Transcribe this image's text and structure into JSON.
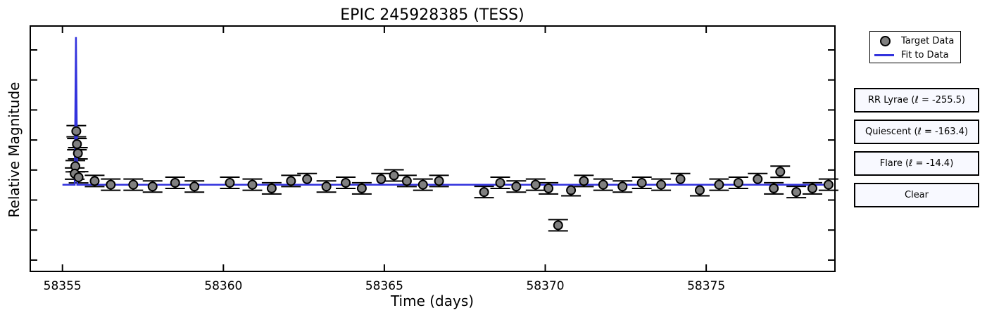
{
  "chart_data": {
    "type": "scatter",
    "title": "EPIC 245928385 (TESS)",
    "xlabel": "Time (days)",
    "ylabel": "Relative Magnitude",
    "xlim": [
      58354,
      58379
    ],
    "ylim": [
      -0.33,
      1.0
    ],
    "xticks": [
      58355,
      58360,
      58365,
      58370,
      58375
    ],
    "xtick_labels": [
      "58355",
      "58360",
      "58365",
      "58370",
      "58375"
    ],
    "grid": false,
    "legend_position": "top-right outside",
    "series": [
      {
        "name": "Target Data",
        "marker": "circle",
        "color": "#808080",
        "error_bars": true,
        "points": [
          [
            58355.43,
            0.43
          ],
          [
            58355.45,
            0.36
          ],
          [
            58355.48,
            0.31
          ],
          [
            58355.4,
            0.24
          ],
          [
            58355.38,
            0.2
          ],
          [
            58355.5,
            0.18
          ],
          [
            58356.0,
            0.16
          ],
          [
            58356.5,
            0.14
          ],
          [
            58357.2,
            0.14
          ],
          [
            58357.8,
            0.13
          ],
          [
            58358.5,
            0.15
          ],
          [
            58359.1,
            0.13
          ],
          [
            58360.2,
            0.15
          ],
          [
            58360.9,
            0.14
          ],
          [
            58361.5,
            0.12
          ],
          [
            58362.1,
            0.16
          ],
          [
            58362.6,
            0.17
          ],
          [
            58363.2,
            0.13
          ],
          [
            58363.8,
            0.15
          ],
          [
            58364.3,
            0.12
          ],
          [
            58364.9,
            0.17
          ],
          [
            58365.3,
            0.19
          ],
          [
            58365.7,
            0.16
          ],
          [
            58366.2,
            0.14
          ],
          [
            58366.7,
            0.16
          ],
          [
            58368.1,
            0.1
          ],
          [
            58368.6,
            0.15
          ],
          [
            58369.1,
            0.13
          ],
          [
            58369.7,
            0.14
          ],
          [
            58370.1,
            0.12
          ],
          [
            58370.4,
            -0.08
          ],
          [
            58370.8,
            0.11
          ],
          [
            58371.2,
            0.16
          ],
          [
            58371.8,
            0.14
          ],
          [
            58372.4,
            0.13
          ],
          [
            58373.0,
            0.15
          ],
          [
            58373.6,
            0.14
          ],
          [
            58374.2,
            0.17
          ],
          [
            58374.8,
            0.11
          ],
          [
            58375.4,
            0.14
          ],
          [
            58376.0,
            0.15
          ],
          [
            58376.6,
            0.17
          ],
          [
            58377.1,
            0.12
          ],
          [
            58377.3,
            0.21
          ],
          [
            58377.8,
            0.1
          ],
          [
            58378.3,
            0.12
          ],
          [
            58378.8,
            0.14
          ]
        ]
      },
      {
        "name": "Fit to Data",
        "type": "line",
        "color": "#3333dd",
        "points": [
          [
            58355.0,
            0.14
          ],
          [
            58355.38,
            0.14
          ],
          [
            58355.42,
            0.94
          ],
          [
            58355.46,
            0.14
          ],
          [
            58366.8,
            0.14
          ],
          [
            58368.0,
            0.14
          ],
          [
            58378.9,
            0.14
          ]
        ]
      }
    ]
  },
  "buttons": {
    "rr_lyrae": "RR Lyrae (ℓ = -255.5)",
    "quiescent": "Quiescent (ℓ = -163.4)",
    "flare": "Flare (ℓ = -14.4)",
    "clear": "Clear"
  },
  "legend": {
    "target": "Target Data",
    "fit": "Fit to Data"
  }
}
